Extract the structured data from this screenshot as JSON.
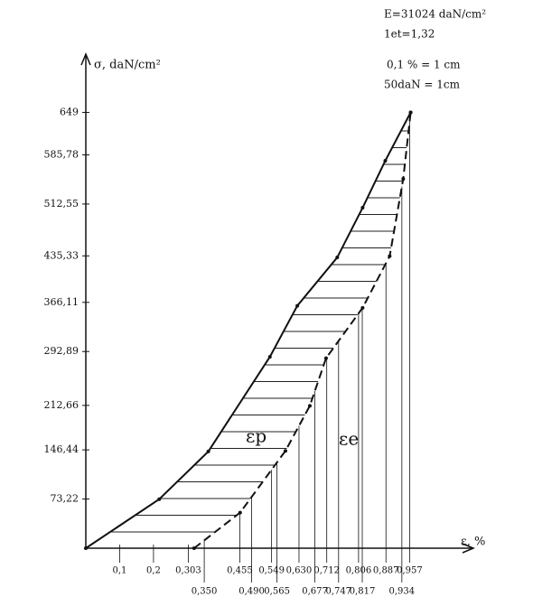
{
  "chart_data": {
    "type": "stress-strain",
    "annotations": [
      "E=31024 daN/cm²",
      "1et=1,32",
      "0,1 % = 1 cm",
      "50daN = 1cm"
    ],
    "y_label": "σ, daN/cm²",
    "x_label": "ε, %",
    "curve_labels": [
      "εp",
      "εe"
    ],
    "xlim": [
      0,
      1.14
    ],
    "ylim": [
      0,
      733
    ],
    "yticks": [
      {
        "value": 73.22,
        "label": "73,22"
      },
      {
        "value": 146.44,
        "label": "146,44"
      },
      {
        "value": 212.66,
        "label": "212,66"
      },
      {
        "value": 292.89,
        "label": "292,89"
      },
      {
        "value": 366.11,
        "label": "366,11"
      },
      {
        "value": 435.33,
        "label": "435,33"
      },
      {
        "value": 512.55,
        "label": "512,55"
      },
      {
        "value": 585.78,
        "label": "585,78"
      },
      649
    ],
    "xticks": [
      {
        "value": 0.1,
        "label": "0,1"
      },
      {
        "value": 0.2,
        "label": "0,2"
      },
      {
        "value": 0.303,
        "label": "0,303"
      },
      {
        "value": 0.35,
        "label": "0,350"
      },
      {
        "value": 0.455,
        "label": "0,455"
      },
      {
        "value": 0.49,
        "label": "0,490"
      },
      {
        "value": 0.549,
        "label": "0,549"
      },
      {
        "value": 0.565,
        "label": "0,565"
      },
      {
        "value": 0.63,
        "label": "0,630"
      },
      {
        "value": 0.677,
        "label": "0,677"
      },
      {
        "value": 0.712,
        "label": "0,712"
      },
      {
        "value": 0.747,
        "label": "0,747"
      },
      {
        "value": 0.806,
        "label": "0,806"
      },
      {
        "value": 0.817,
        "label": "0,817"
      },
      {
        "value": 0.887,
        "label": "0,887"
      },
      {
        "value": 0.934,
        "label": "0,934"
      },
      {
        "value": 0.957,
        "label": "0,957"
      }
    ],
    "series": [
      {
        "name": "total",
        "color": "#111",
        "dashed": false,
        "x": [
          0,
          0.217,
          0.362,
          0.544,
          0.625,
          0.743,
          0.818,
          0.885,
          0.96
        ],
        "values": [
          0,
          73,
          144,
          285,
          361,
          433,
          507,
          577,
          649
        ]
      },
      {
        "name": "elastic",
        "color": "#111",
        "dashed": true,
        "x": [
          0.32,
          0.456,
          0.59,
          0.662,
          0.71,
          0.818,
          0.898,
          0.938,
          0.96
        ],
        "values": [
          0,
          53,
          145,
          212,
          283,
          358,
          435,
          550,
          649
        ]
      }
    ]
  }
}
